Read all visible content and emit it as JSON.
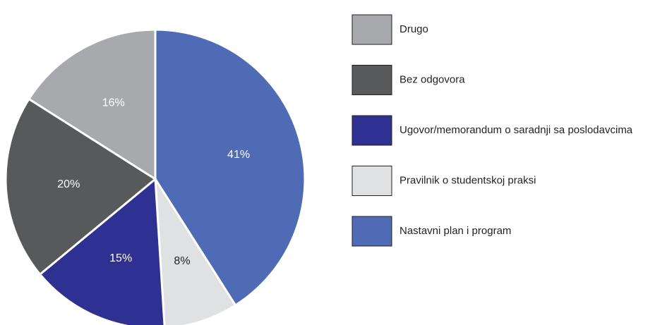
{
  "chart_data": {
    "type": "pie",
    "categories": [
      "Nastavni plan i program",
      "Pravilnik o studentskoj praksi",
      "Ugovor/memorandum o saradnji sa poslodavcima",
      "Bez odgovora",
      "Drugo"
    ],
    "values": [
      41,
      8,
      15,
      20,
      16
    ],
    "value_labels": [
      "41%",
      "8%",
      "15%",
      "20%",
      "16%"
    ],
    "colors": [
      "#4f6bb5",
      "#e0e1e3",
      "#2e3192",
      "#58595b",
      "#a7a9ac"
    ],
    "legend": "right"
  }
}
